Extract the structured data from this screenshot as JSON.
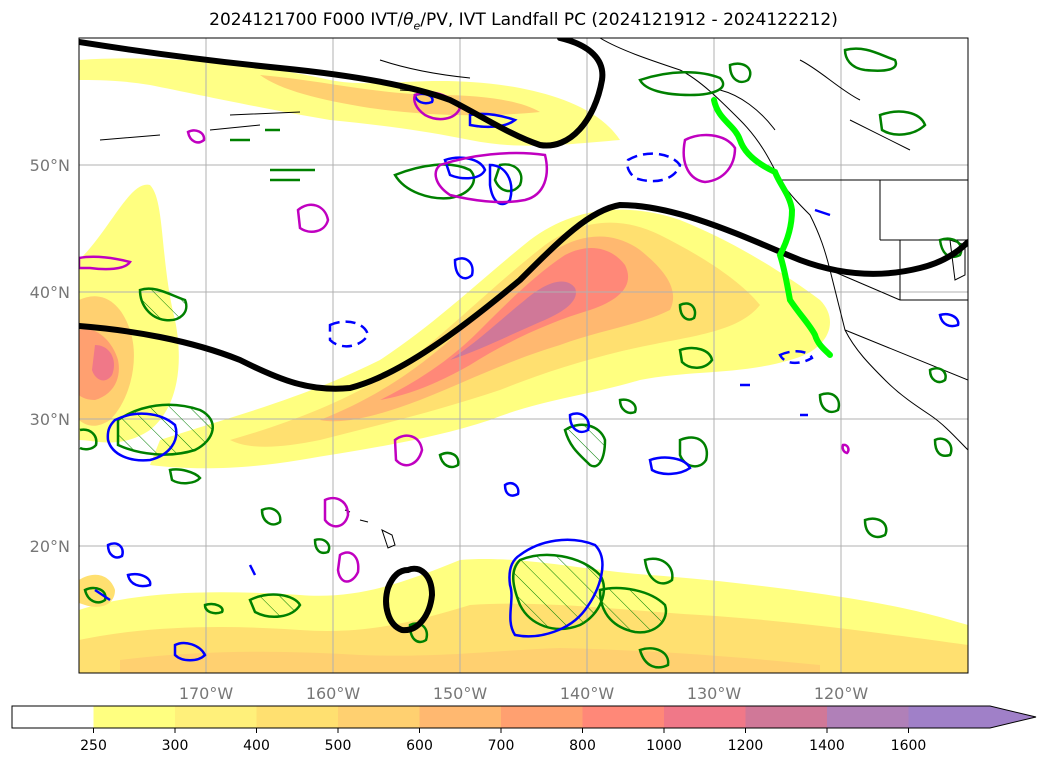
{
  "title": {
    "prefix": "2024121700 F000 IVT/",
    "theta": "θ",
    "theta_sub": "e",
    "suffix": "/PV, IVT Landfall PC (2024121912 - 2024122212)"
  },
  "map": {
    "lat_labels": [
      "50°N",
      "40°N",
      "30°N",
      "20°N"
    ],
    "lon_labels": [
      "170°W",
      "160°W",
      "150°W",
      "140°W",
      "130°W",
      "120°W"
    ],
    "extent": {
      "lon_min": -180,
      "lon_max": -110,
      "lat_min": 10,
      "lat_max": 60
    },
    "grid": true
  },
  "colorbar": {
    "ticks": [
      "250",
      "300",
      "400",
      "500",
      "600",
      "700",
      "800",
      "1000",
      "1200",
      "1400",
      "1600"
    ],
    "colors": [
      "#ffffff",
      "#ffff80",
      "#fff07a",
      "#ffe070",
      "#ffd070",
      "#ffb870",
      "#ffa070",
      "#ff8878",
      "#f07888",
      "#d07898",
      "#b080b8",
      "#a080c8"
    ],
    "extend": "max"
  },
  "colors": {
    "pv_contour": "#008000",
    "theta_contour": "#0000ff",
    "ivt_anomaly": "#c000c0",
    "landfall_line": "#00ff00",
    "ivt_pc_line": "#000000",
    "grid": "#b0b0b0"
  }
}
